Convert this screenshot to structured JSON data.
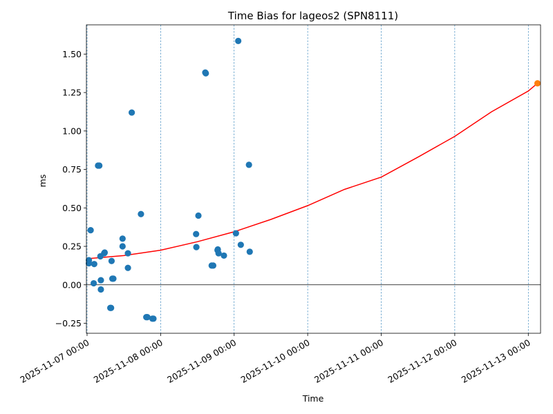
{
  "chart_data": {
    "type": "scatter",
    "title": "Time Bias for lageos2 (SPN8111)",
    "xlabel": "Time",
    "ylabel": "ms",
    "xlim": [
      "2025-11-06 23:47",
      "2025-11-13 04:00"
    ],
    "ylim": [
      -0.315,
      1.69
    ],
    "yticks": [
      -0.25,
      0.0,
      0.25,
      0.5,
      0.75,
      1.0,
      1.25,
      1.5
    ],
    "ytick_labels": [
      "−0.25",
      "0.00",
      "0.25",
      "0.50",
      "0.75",
      "1.00",
      "1.25",
      "1.50"
    ],
    "xticks": [
      "2025-11-07 00:00",
      "2025-11-08 00:00",
      "2025-11-09 00:00",
      "2025-11-10 00:00",
      "2025-11-11 00:00",
      "2025-11-12 00:00",
      "2025-11-13 00:00"
    ],
    "xtick_labels": [
      "2025-11-07 00:00",
      "2025-11-08 00:00",
      "2025-11-09 00:00",
      "2025-11-10 00:00",
      "2025-11-11 00:00",
      "2025-11-12 00:00",
      "2025-11-13 00:00"
    ],
    "grid": "x-only-dashed",
    "zero_line": true,
    "colors": {
      "points": "#1f77b4",
      "fit": "#ff0000",
      "prediction": "#ff7f0e",
      "grid": "#1f77b4"
    },
    "series": [
      {
        "kind": "points",
        "points": [
          {
            "x": "2025-11-07 00:35",
            "y": 0.14
          },
          {
            "x": "2025-11-07 00:36",
            "y": 0.16
          },
          {
            "x": "2025-11-07 01:10",
            "y": 0.355
          },
          {
            "x": "2025-11-07 02:10",
            "y": 0.01
          },
          {
            "x": "2025-11-07 02:20",
            "y": 0.135
          },
          {
            "x": "2025-11-07 03:35",
            "y": 0.775
          },
          {
            "x": "2025-11-07 04:00",
            "y": 0.775
          },
          {
            "x": "2025-11-07 04:20",
            "y": 0.185
          },
          {
            "x": "2025-11-07 04:30",
            "y": 0.03
          },
          {
            "x": "2025-11-07 04:30",
            "y": -0.03
          },
          {
            "x": "2025-11-07 05:35",
            "y": 0.205
          },
          {
            "x": "2025-11-07 05:45",
            "y": 0.21
          },
          {
            "x": "2025-11-07 07:35",
            "y": -0.15
          },
          {
            "x": "2025-11-07 07:50",
            "y": -0.15
          },
          {
            "x": "2025-11-07 08:00",
            "y": 0.155
          },
          {
            "x": "2025-11-07 08:15",
            "y": 0.04
          },
          {
            "x": "2025-11-07 08:35",
            "y": 0.04
          },
          {
            "x": "2025-11-07 11:35",
            "y": 0.3
          },
          {
            "x": "2025-11-07 11:35",
            "y": 0.25
          },
          {
            "x": "2025-11-07 13:20",
            "y": 0.205
          },
          {
            "x": "2025-11-07 13:20",
            "y": 0.11
          },
          {
            "x": "2025-11-07 14:35",
            "y": 1.12
          },
          {
            "x": "2025-11-07 17:35",
            "y": 0.46
          },
          {
            "x": "2025-11-07 19:20",
            "y": -0.21
          },
          {
            "x": "2025-11-07 19:40",
            "y": -0.21
          },
          {
            "x": "2025-11-07 21:20",
            "y": -0.22
          },
          {
            "x": "2025-11-07 21:40",
            "y": -0.22
          },
          {
            "x": "2025-11-08 11:35",
            "y": 0.33
          },
          {
            "x": "2025-11-08 11:40",
            "y": 0.245
          },
          {
            "x": "2025-11-08 12:20",
            "y": 0.45
          },
          {
            "x": "2025-11-08 14:35",
            "y": 1.38
          },
          {
            "x": "2025-11-08 14:45",
            "y": 1.375
          },
          {
            "x": "2025-11-08 16:40",
            "y": 0.125
          },
          {
            "x": "2025-11-08 17:10",
            "y": 0.125
          },
          {
            "x": "2025-11-08 18:35",
            "y": 0.225
          },
          {
            "x": "2025-11-08 18:40",
            "y": 0.23
          },
          {
            "x": "2025-11-08 18:55",
            "y": 0.205
          },
          {
            "x": "2025-11-08 20:40",
            "y": 0.19
          },
          {
            "x": "2025-11-09 00:35",
            "y": 0.335
          },
          {
            "x": "2025-11-09 01:20",
            "y": 1.585
          },
          {
            "x": "2025-11-09 02:10",
            "y": 0.26
          },
          {
            "x": "2025-11-09 04:50",
            "y": 0.78
          },
          {
            "x": "2025-11-09 05:05",
            "y": 0.215
          }
        ]
      },
      {
        "kind": "fit",
        "points": [
          {
            "x": "2025-11-07 00:00",
            "y": 0.17
          },
          {
            "x": "2025-11-07 12:00",
            "y": 0.19
          },
          {
            "x": "2025-11-08 00:00",
            "y": 0.225
          },
          {
            "x": "2025-11-08 12:00",
            "y": 0.28
          },
          {
            "x": "2025-11-09 00:00",
            "y": 0.345
          },
          {
            "x": "2025-11-09 12:00",
            "y": 0.425
          },
          {
            "x": "2025-11-10 00:00",
            "y": 0.515
          },
          {
            "x": "2025-11-10 12:00",
            "y": 0.62
          },
          {
            "x": "2025-11-11 00:00",
            "y": 0.7
          },
          {
            "x": "2025-11-11 12:00",
            "y": 0.83
          },
          {
            "x": "2025-11-12 00:00",
            "y": 0.965
          },
          {
            "x": "2025-11-12 12:00",
            "y": 1.125
          },
          {
            "x": "2025-11-13 00:00",
            "y": 1.26
          },
          {
            "x": "2025-11-13 03:00",
            "y": 1.31
          }
        ]
      },
      {
        "kind": "prediction",
        "points": [
          {
            "x": "2025-11-13 03:00",
            "y": 1.31
          }
        ]
      }
    ]
  }
}
